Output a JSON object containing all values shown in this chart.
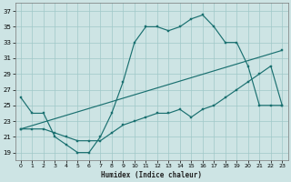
{
  "xlabel": "Humidex (Indice chaleur)",
  "ylabel": "",
  "xlim": [
    -0.5,
    23.5
  ],
  "ylim": [
    18,
    38
  ],
  "yticks": [
    19,
    21,
    23,
    25,
    27,
    29,
    31,
    33,
    35,
    37
  ],
  "xticks": [
    0,
    1,
    2,
    3,
    4,
    5,
    6,
    7,
    8,
    9,
    10,
    11,
    12,
    13,
    14,
    15,
    16,
    17,
    18,
    19,
    20,
    21,
    22,
    23
  ],
  "bg_color": "#cde4e4",
  "grid_color": "#a0c8c8",
  "line_color": "#1a7070",
  "line1_y": [
    26,
    24,
    24,
    21,
    20,
    19,
    19,
    21,
    24,
    28,
    33,
    35,
    35,
    34.5,
    35,
    36,
    36.5,
    35,
    33,
    33,
    30,
    25,
    25,
    25
  ],
  "line2_y": [
    22,
    22,
    22,
    21.5,
    21,
    20.5,
    20.5,
    20.5,
    21.5,
    22.5,
    23,
    23.5,
    24,
    24,
    24.5,
    23.5,
    24.5,
    25,
    26,
    27,
    28,
    29,
    30,
    25
  ],
  "line3_x": [
    0,
    23
  ],
  "line3_y": [
    22,
    32
  ]
}
